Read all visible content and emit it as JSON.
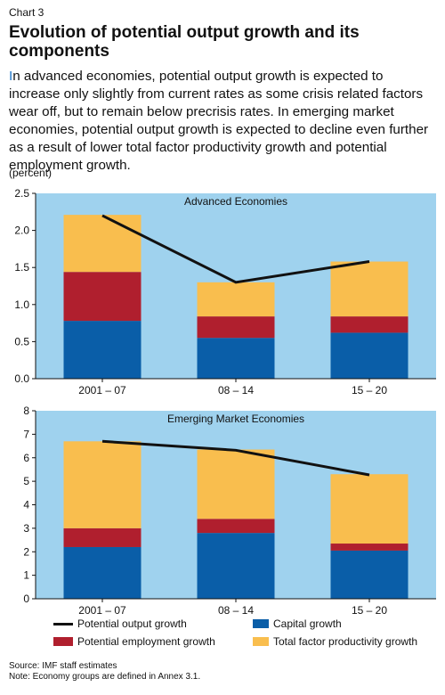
{
  "header": {
    "chart_label": "Chart 3",
    "title": "Evolution of potential output growth and its components",
    "lead_first": "I",
    "lead_rest": "n advanced economies, potential output growth is expected to increase only slightly from current rates as some crisis related factors wear off, but to remain below precrisis rates. In emerging market economies, potential output growth is expected to decline even further as a result of lower total factor productivity growth and potential employment growth.",
    "units": "(percent)"
  },
  "colors": {
    "panel_bg": "#9fd2ee",
    "capital": "#0a5ea8",
    "employment": "#b01f2e",
    "tfp": "#f9be4e",
    "line": "#111111"
  },
  "legend": {
    "potential_output": "Potential output growth",
    "capital": "Capital growth",
    "employment": "Potential employment growth",
    "tfp": "Total factor productivity growth"
  },
  "notes": {
    "source": "Source: IMF staff estimates",
    "note": "Note: Economy groups are defined in Annex 3.1."
  },
  "chart_data": [
    {
      "type": "bar",
      "stacked": true,
      "title": "Advanced Economies",
      "categories": [
        "2001 – 07",
        "08 – 14",
        "15 – 20"
      ],
      "ylim": [
        0,
        2.5
      ],
      "yticks": [
        "0.0",
        "0.5",
        "1.0",
        "1.5",
        "2.0",
        "2.5"
      ],
      "series": [
        {
          "name": "Capital growth",
          "values": [
            0.78,
            0.55,
            0.62
          ]
        },
        {
          "name": "Potential employment growth",
          "values": [
            0.66,
            0.29,
            0.22
          ]
        },
        {
          "name": "Total factor productivity growth",
          "values": [
            0.77,
            0.46,
            0.74
          ]
        }
      ],
      "line": {
        "name": "Potential output growth",
        "values": [
          2.2,
          1.3,
          1.58
        ]
      }
    },
    {
      "type": "bar",
      "stacked": true,
      "title": "Emerging Market Economies",
      "categories": [
        "2001 – 07",
        "08 – 14",
        "15 – 20"
      ],
      "ylim": [
        0,
        8
      ],
      "yticks": [
        "0",
        "1",
        "2",
        "3",
        "4",
        "5",
        "6",
        "7",
        "8"
      ],
      "series": [
        {
          "name": "Capital growth",
          "values": [
            2.2,
            2.8,
            2.05
          ]
        },
        {
          "name": "Potential employment growth",
          "values": [
            0.8,
            0.6,
            0.3
          ]
        },
        {
          "name": "Total factor productivity growth",
          "values": [
            3.7,
            2.95,
            2.95
          ]
        }
      ],
      "line": {
        "name": "Potential output growth",
        "values": [
          6.7,
          6.32,
          5.27
        ]
      }
    }
  ]
}
